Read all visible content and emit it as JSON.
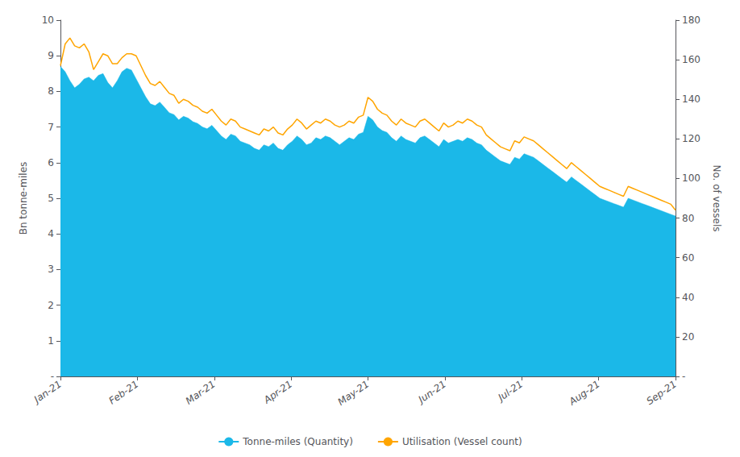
{
  "chart_data": {
    "type": "line",
    "x": [
      0,
      0.0615384615,
      0.1230769231,
      0.1846153846,
      0.2461538462,
      0.3076923077,
      0.3692307692,
      0.4307692308,
      0.4923076923,
      0.5538461538,
      0.6153846154,
      0.6769230769,
      0.7384615385,
      0.8,
      0.8615384615,
      0.9230769231,
      0.9846153846,
      1.0461538462,
      1.1076923077,
      1.1692307692,
      1.2307692308,
      1.2923076923,
      1.3538461538,
      1.4153846154,
      1.4769230769,
      1.5384615385,
      1.6,
      1.6615384615,
      1.7230769231,
      1.7846153846,
      1.8461538462,
      1.9076923077,
      1.9692307692,
      2.0307692308,
      2.0923076923,
      2.1538461538,
      2.2153846154,
      2.2769230769,
      2.3384615385,
      2.4,
      2.4615384615,
      2.5230769231,
      2.5846153846,
      2.6461538462,
      2.7076923077,
      2.7692307692,
      2.8307692308,
      2.8923076923,
      2.9538461538,
      3.0153846154,
      3.0769230769,
      3.1384615385,
      3.2,
      3.2615384615,
      3.3230769231,
      3.3846153846,
      3.4461538462,
      3.5076923077,
      3.5692307692,
      3.6307692308,
      3.6923076923,
      3.7538461538,
      3.8153846154,
      3.8769230769,
      3.9384615385,
      4,
      4.0615384615,
      4.1230769231,
      4.1846153846,
      4.2461538462,
      4.3076923077,
      4.3692307692,
      4.4307692308,
      4.4923076923,
      4.5538461538,
      4.6153846154,
      4.6769230769,
      4.7384615385,
      4.8,
      4.8615384615,
      4.9230769231,
      4.9846153846,
      5.0461538462,
      5.1076923077,
      5.1692307692,
      5.2307692308,
      5.2923076923,
      5.3538461538,
      5.4153846154,
      5.4769230769,
      5.5384615385,
      5.6,
      5.6615384615,
      5.7230769231,
      5.7846153846,
      5.8461538462,
      5.9076923077,
      5.9692307692,
      6.0307692308,
      6.0923076923,
      6.1538461538,
      6.2153846154,
      6.2769230769,
      6.3384615385,
      6.4,
      6.4615384615,
      6.5230769231,
      6.5846153846,
      6.6461538462,
      6.7076923077,
      6.7692307692,
      6.8307692308,
      6.8923076923,
      6.9538461538,
      7.0153846154,
      7.0769230769,
      7.1384615385,
      7.2,
      7.2615384615,
      7.3230769231,
      7.3846153846,
      7.4461538462,
      7.5076923077,
      7.5692307692,
      7.6307692308,
      7.6923076923,
      7.7538461538,
      7.8153846154,
      7.8769230769,
      7.9384615385,
      8
    ],
    "xlim": [
      0,
      8
    ],
    "xticks": [
      {
        "value": 0,
        "label": "Jan-21"
      },
      {
        "value": 1,
        "label": "Feb-21"
      },
      {
        "value": 2,
        "label": "Mar-21"
      },
      {
        "value": 3,
        "label": "Apr-21"
      },
      {
        "value": 4,
        "label": "May-21"
      },
      {
        "value": 5,
        "label": "Jun-21"
      },
      {
        "value": 6,
        "label": "Jul-21"
      },
      {
        "value": 7,
        "label": "Aug-21"
      },
      {
        "value": 8,
        "label": "Sep-21"
      }
    ],
    "ylabel": "Bn tonne-miles",
    "ylim": [
      0,
      10
    ],
    "yticks": [
      {
        "value": 0,
        "label": "-"
      },
      1,
      2,
      3,
      4,
      5,
      6,
      7,
      8,
      9,
      10
    ],
    "y2label": "No. of vessels",
    "y2lim": [
      0,
      180
    ],
    "y2ticks": [
      {
        "value": 0,
        "label": "-"
      },
      20,
      40,
      60,
      80,
      100,
      120,
      140,
      160,
      180
    ],
    "grid": false,
    "legend": "bottom",
    "series": [
      {
        "name": "Tonne-miles (Quantity)",
        "type": "area",
        "color": "#1BB8E8",
        "values": [
          8.7,
          8.55,
          8.3,
          8.1,
          8.2,
          8.35,
          8.4,
          8.3,
          8.45,
          8.5,
          8.25,
          8.1,
          8.3,
          8.55,
          8.65,
          8.6,
          8.35,
          8.1,
          7.85,
          7.65,
          7.6,
          7.7,
          7.55,
          7.4,
          7.35,
          7.2,
          7.3,
          7.25,
          7.15,
          7.1,
          7.0,
          6.95,
          7.05,
          6.9,
          6.75,
          6.65,
          6.8,
          6.75,
          6.6,
          6.55,
          6.5,
          6.4,
          6.35,
          6.5,
          6.45,
          6.55,
          6.4,
          6.35,
          6.5,
          6.6,
          6.75,
          6.65,
          6.5,
          6.55,
          6.7,
          6.65,
          6.75,
          6.7,
          6.6,
          6.5,
          6.6,
          6.7,
          6.65,
          6.8,
          6.85,
          7.3,
          7.2,
          7.0,
          6.9,
          6.85,
          6.7,
          6.6,
          6.75,
          6.65,
          6.6,
          6.55,
          6.7,
          6.75,
          6.65,
          6.55,
          6.45,
          6.65,
          6.55,
          6.6,
          6.65,
          6.6,
          6.7,
          6.65,
          6.55,
          6.5,
          6.35,
          6.25,
          6.15,
          6.05,
          6.0,
          5.95,
          6.15,
          6.1,
          6.25,
          6.2,
          6.15,
          6.05,
          5.95,
          5.85,
          5.75,
          5.65,
          5.55,
          5.45,
          5.6,
          5.5,
          5.4,
          5.3,
          5.2,
          5.1,
          5.0,
          4.95,
          4.9,
          4.85,
          4.8,
          4.75,
          5.0,
          4.95,
          4.9,
          4.85,
          4.8,
          4.75,
          4.7,
          4.65,
          4.6,
          4.55,
          4.5
        ]
      },
      {
        "name": "Utilisation (Vessel count)",
        "type": "line",
        "color": "#FFA500",
        "axis": "y2",
        "values": [
          157,
          168,
          171,
          167,
          166,
          168,
          164,
          155,
          159,
          163,
          162,
          158,
          158,
          161,
          163,
          163,
          162,
          157,
          152,
          148,
          147,
          149,
          146,
          143,
          142,
          138,
          140,
          139,
          137,
          136,
          134,
          133,
          135,
          132,
          129,
          127,
          130,
          129,
          126,
          125,
          124,
          123,
          122,
          125,
          124,
          126,
          123,
          122,
          125,
          127,
          130,
          128,
          125,
          127,
          129,
          128,
          130,
          129,
          127,
          126,
          127,
          129,
          128,
          131,
          132,
          141,
          139,
          135,
          133,
          132,
          129,
          127,
          130,
          128,
          127,
          126,
          129,
          130,
          128,
          126,
          124,
          128,
          126,
          127,
          129,
          128,
          130,
          129,
          127,
          126,
          122,
          120,
          118,
          116,
          115,
          114,
          119,
          118,
          121,
          120,
          119,
          117,
          115,
          113,
          111,
          109,
          107,
          105,
          108,
          106,
          104,
          102,
          100,
          98,
          96,
          95,
          94,
          93,
          92,
          91,
          96,
          95,
          94,
          93,
          92,
          91,
          90,
          89,
          88,
          87,
          84
        ]
      }
    ]
  }
}
